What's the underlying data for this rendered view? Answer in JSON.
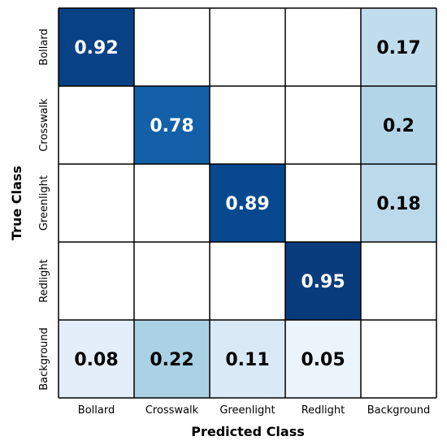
{
  "chart_data": {
    "type": "heatmap",
    "xlabel": "Predicted Class",
    "ylabel": "True Class",
    "x_categories": [
      "Bollard",
      "Crosswalk",
      "Greenlight",
      "Redlight",
      "Background"
    ],
    "y_categories": [
      "Bollard",
      "Crosswalk",
      "Greenlight",
      "Redlight",
      "Background"
    ],
    "values": [
      [
        0.92,
        null,
        null,
        null,
        0.17
      ],
      [
        null,
        0.78,
        null,
        null,
        0.2
      ],
      [
        null,
        null,
        0.89,
        null,
        0.18
      ],
      [
        null,
        null,
        null,
        0.95,
        null
      ],
      [
        0.08,
        0.22,
        0.11,
        0.05,
        null
      ]
    ],
    "colormap": "Blues",
    "colors": {
      "max": "#08306b",
      "mid": "#2171b5",
      "low": "#deebf7",
      "empty": "#ffffff",
      "grid": "#000000"
    }
  }
}
